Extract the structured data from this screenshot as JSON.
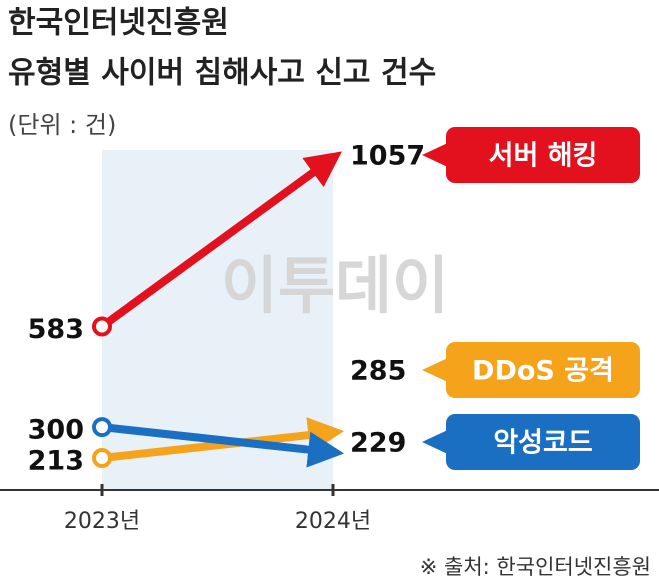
{
  "chart_data": {
    "type": "line",
    "title": "한국인터넷진흥원",
    "subtitle": "유형별 사이버 침해사고 신고 건수",
    "unit_note": "(단위 : 건)",
    "watermark": "이투데이",
    "source": "※ 출처: 한국인터넷진흥원",
    "categories": [
      "2023년",
      "2024년"
    ],
    "series": [
      {
        "name": "서버 해킹",
        "color": "#e3101e",
        "values": [
          583,
          1057
        ]
      },
      {
        "name": "DDoS 공격",
        "color": "#f5a31a",
        "values": [
          213,
          285
        ]
      },
      {
        "name": "악성코드",
        "color": "#1a6fc2",
        "values": [
          300,
          229
        ]
      }
    ]
  }
}
